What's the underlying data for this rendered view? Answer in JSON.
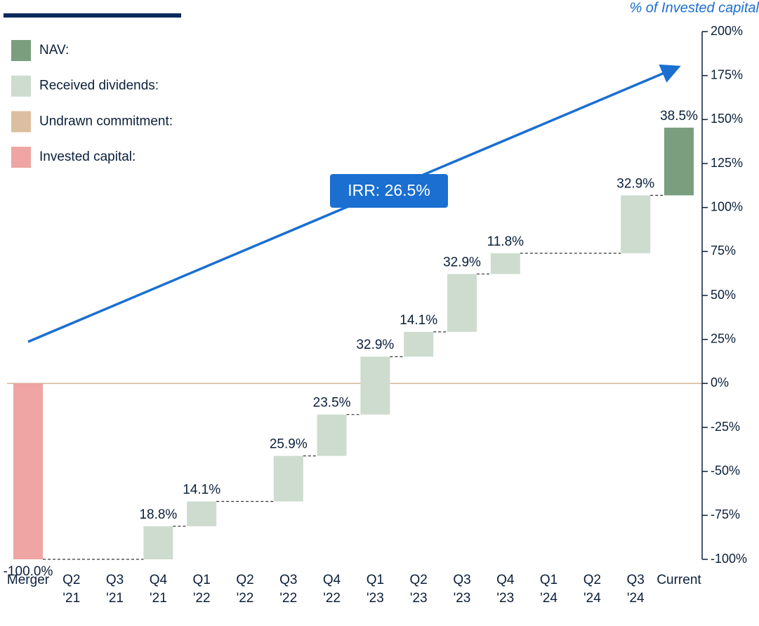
{
  "chart_data": {
    "type": "waterfall",
    "axis_title": "% of Invested capital",
    "annotation": "IRR: 26.5%",
    "legend": [
      {
        "name": "NAV:",
        "color": "#7a9e7e"
      },
      {
        "name": "Received dividends:",
        "color": "#cddccf"
      },
      {
        "name": "Undrawn commitment:",
        "color": "#dcbfa0"
      },
      {
        "name": "Invested capital:",
        "color": "#eea5a3"
      }
    ],
    "categories": [
      "Merger",
      "Q2 '21",
      "Q3 '21",
      "Q4 '21",
      "Q1 '22",
      "Q2 '22",
      "Q3 '22",
      "Q4 '22",
      "Q1 '23",
      "Q2 '23",
      "Q3 '23",
      "Q4 '23",
      "Q1 '24",
      "Q2 '24",
      "Q3 '24",
      "Current"
    ],
    "values": [
      -100,
      null,
      null,
      18.8,
      14.1,
      null,
      25.9,
      23.5,
      32.9,
      14.1,
      32.9,
      11.8,
      null,
      null,
      32.9,
      38.5
    ],
    "value_labels": [
      "-100.0%",
      null,
      null,
      "18.8%",
      "14.1%",
      null,
      "25.9%",
      "23.5%",
      "32.9%",
      "14.1%",
      "32.9%",
      "11.8%",
      null,
      null,
      "32.9%",
      "38.5%"
    ],
    "colors": [
      "#eea5a3",
      null,
      null,
      "#cddccf",
      "#cddccf",
      null,
      "#cddccf",
      "#cddccf",
      "#cddccf",
      "#cddccf",
      "#cddccf",
      "#cddccf",
      null,
      null,
      "#cddccf",
      "#7a9e7e"
    ],
    "ylim": [
      -100,
      200
    ],
    "yticks": [
      {
        "value": -100,
        "label": "-100%"
      },
      {
        "value": -75,
        "label": "-75%"
      },
      {
        "value": -50,
        "label": "-50%"
      },
      {
        "value": -25,
        "label": "-25%"
      },
      {
        "value": 0,
        "label": "0%"
      },
      {
        "value": 25,
        "label": "25%"
      },
      {
        "value": 50,
        "label": "50%"
      },
      {
        "value": 75,
        "label": "75%"
      },
      {
        "value": 100,
        "label": "100%"
      },
      {
        "value": 125,
        "label": "125%"
      },
      {
        "value": 150,
        "label": "150%"
      },
      {
        "value": 175,
        "label": "175%"
      },
      {
        "value": 200,
        "label": "200%"
      }
    ]
  }
}
